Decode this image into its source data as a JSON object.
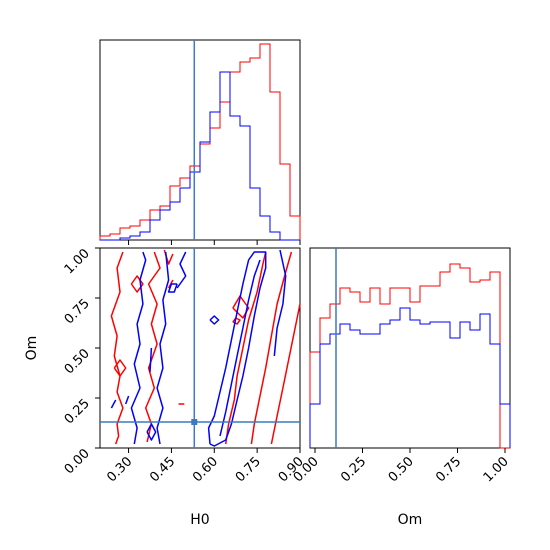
{
  "chart_data": {
    "type": "corner",
    "colors": {
      "series_a": "#ff0000",
      "series_b": "#0000ff",
      "truth": "#3b7bbf"
    },
    "parameters": [
      "H0",
      "Om"
    ],
    "truth": {
      "H0": 0.53,
      "Om": 0.13
    },
    "axes": {
      "H0": {
        "label": "H0",
        "range": [
          0.2,
          0.9
        ],
        "ticks": [
          0.3,
          0.45,
          0.6,
          0.75,
          0.9
        ],
        "tick_labels": [
          "0.30",
          "0.45",
          "0.60",
          "0.75",
          "0.90"
        ]
      },
      "Om": {
        "label": "Om",
        "range": [
          0.0,
          1.0
        ],
        "ticks": [
          0.0,
          0.25,
          0.5,
          0.75,
          1.0
        ],
        "tick_labels": [
          "0.00",
          "0.25",
          "0.50",
          "0.75",
          "1.00"
        ]
      }
    },
    "hist_H0": {
      "bins": 20,
      "series": [
        {
          "values": [
            0.02,
            0.03,
            0.06,
            0.07,
            0.1,
            0.15,
            0.17,
            0.27,
            0.31,
            0.37,
            0.48,
            0.56,
            0.69,
            0.84,
            0.89,
            0.91,
            0.98,
            0.74,
            0.38,
            0.12
          ]
        },
        {
          "values": [
            0.0,
            0.0,
            0.01,
            0.02,
            0.04,
            0.1,
            0.15,
            0.19,
            0.26,
            0.34,
            0.49,
            0.64,
            0.84,
            0.62,
            0.57,
            0.26,
            0.12,
            0.04,
            0.0,
            0.0
          ]
        }
      ]
    },
    "hist_Om": {
      "bins": 20,
      "series": [
        {
          "values": [
            0.48,
            0.65,
            0.72,
            0.8,
            0.78,
            0.73,
            0.8,
            0.72,
            0.8,
            0.8,
            0.73,
            0.81,
            0.81,
            0.88,
            0.92,
            0.9,
            0.83,
            0.84,
            0.88,
            0.0
          ]
        },
        {
          "values": [
            0.22,
            0.52,
            0.57,
            0.62,
            0.59,
            0.57,
            0.57,
            0.62,
            0.64,
            0.7,
            0.64,
            0.62,
            0.63,
            0.63,
            0.55,
            0.63,
            0.59,
            0.67,
            0.52,
            0.22
          ]
        }
      ]
    },
    "contours_red": [
      [
        [
          0.255,
          0.02
        ],
        [
          0.265,
          0.06
        ],
        [
          0.26,
          0.12
        ],
        [
          0.28,
          0.2
        ],
        [
          0.26,
          0.28
        ],
        [
          0.27,
          0.36
        ],
        [
          0.25,
          0.46
        ],
        [
          0.26,
          0.56
        ],
        [
          0.24,
          0.66
        ],
        [
          0.27,
          0.78
        ],
        [
          0.26,
          0.9
        ],
        [
          0.28,
          0.98
        ]
      ],
      [
        [
          0.365,
          0.03
        ],
        [
          0.38,
          0.12
        ],
        [
          0.36,
          0.2
        ],
        [
          0.39,
          0.3
        ],
        [
          0.37,
          0.4
        ],
        [
          0.4,
          0.52
        ],
        [
          0.38,
          0.62
        ],
        [
          0.4,
          0.72
        ],
        [
          0.37,
          0.82
        ],
        [
          0.41,
          0.9
        ],
        [
          0.39,
          0.98
        ]
      ],
      [
        [
          0.25,
          0.4
        ],
        [
          0.27,
          0.36
        ],
        [
          0.29,
          0.4
        ],
        [
          0.27,
          0.44
        ],
        [
          0.25,
          0.4
        ]
      ],
      [
        [
          0.31,
          0.82
        ],
        [
          0.33,
          0.78
        ],
        [
          0.35,
          0.82
        ],
        [
          0.33,
          0.86
        ],
        [
          0.31,
          0.82
        ]
      ],
      [
        [
          0.64,
          0.02
        ],
        [
          0.65,
          0.12
        ],
        [
          0.67,
          0.24
        ],
        [
          0.68,
          0.36
        ],
        [
          0.7,
          0.5
        ],
        [
          0.72,
          0.64
        ],
        [
          0.75,
          0.78
        ],
        [
          0.77,
          0.92
        ],
        [
          0.78,
          0.98
        ]
      ],
      [
        [
          0.73,
          0.02
        ],
        [
          0.74,
          0.12
        ],
        [
          0.76,
          0.26
        ],
        [
          0.78,
          0.4
        ],
        [
          0.8,
          0.56
        ],
        [
          0.82,
          0.72
        ],
        [
          0.85,
          0.88
        ],
        [
          0.87,
          0.98
        ]
      ],
      [
        [
          0.8,
          0.02
        ],
        [
          0.82,
          0.16
        ],
        [
          0.84,
          0.3
        ],
        [
          0.86,
          0.44
        ],
        [
          0.88,
          0.58
        ],
        [
          0.9,
          0.72
        ]
      ],
      [
        [
          0.665,
          0.7
        ],
        [
          0.7,
          0.65
        ],
        [
          0.72,
          0.7
        ],
        [
          0.69,
          0.76
        ],
        [
          0.665,
          0.7
        ]
      ],
      [
        [
          0.665,
          0.63
        ],
        [
          0.68,
          0.62
        ],
        [
          0.69,
          0.64
        ],
        [
          0.675,
          0.65
        ],
        [
          0.665,
          0.63
        ]
      ],
      [
        [
          0.475,
          0.22
        ],
        [
          0.495,
          0.22
        ]
      ],
      [
        [
          0.44,
          0.8
        ],
        [
          0.455,
          0.84
        ]
      ],
      [
        [
          0.425,
          0.99
        ],
        [
          0.44,
          0.92
        ],
        [
          0.455,
          0.97
        ]
      ]
    ],
    "contours_blue": [
      [
        [
          0.32,
          0.02
        ],
        [
          0.33,
          0.1
        ],
        [
          0.31,
          0.2
        ],
        [
          0.34,
          0.3
        ],
        [
          0.32,
          0.42
        ],
        [
          0.34,
          0.52
        ],
        [
          0.33,
          0.62
        ],
        [
          0.35,
          0.72
        ],
        [
          0.34,
          0.84
        ],
        [
          0.36,
          0.94
        ],
        [
          0.35,
          0.98
        ]
      ],
      [
        [
          0.41,
          0.02
        ],
        [
          0.4,
          0.1
        ],
        [
          0.42,
          0.2
        ],
        [
          0.4,
          0.3
        ],
        [
          0.42,
          0.4
        ],
        [
          0.41,
          0.52
        ],
        [
          0.43,
          0.62
        ],
        [
          0.42,
          0.74
        ],
        [
          0.44,
          0.84
        ],
        [
          0.43,
          0.98
        ]
      ],
      [
        [
          0.375,
          0.38
        ],
        [
          0.38,
          0.5
        ]
      ],
      [
        [
          0.5,
          0.98
        ],
        [
          0.48,
          0.92
        ],
        [
          0.5,
          0.86
        ],
        [
          0.47,
          0.8
        ]
      ],
      [
        [
          0.47,
          0.82
        ],
        [
          0.46,
          0.78
        ],
        [
          0.44,
          0.78
        ],
        [
          0.45,
          0.82
        ],
        [
          0.47,
          0.82
        ]
      ],
      [
        [
          0.365,
          0.08
        ],
        [
          0.38,
          0.12
        ],
        [
          0.395,
          0.08
        ],
        [
          0.38,
          0.04
        ],
        [
          0.365,
          0.08
        ]
      ],
      [
        [
          0.24,
          0.2
        ],
        [
          0.255,
          0.24
        ]
      ],
      [
        [
          0.29,
          0.22
        ],
        [
          0.3,
          0.26
        ]
      ],
      [
        [
          0.585,
          0.02
        ],
        [
          0.58,
          0.1
        ],
        [
          0.6,
          0.16
        ],
        [
          0.62,
          0.28
        ],
        [
          0.64,
          0.4
        ],
        [
          0.66,
          0.54
        ],
        [
          0.68,
          0.68
        ],
        [
          0.7,
          0.82
        ],
        [
          0.72,
          0.94
        ],
        [
          0.74,
          0.98
        ],
        [
          0.78,
          0.98
        ],
        [
          0.78,
          0.9
        ],
        [
          0.76,
          0.8
        ],
        [
          0.74,
          0.66
        ],
        [
          0.72,
          0.5
        ],
        [
          0.7,
          0.36
        ],
        [
          0.68,
          0.24
        ],
        [
          0.66,
          0.12
        ],
        [
          0.64,
          0.04
        ],
        [
          0.6,
          0.01
        ],
        [
          0.585,
          0.02
        ]
      ],
      [
        [
          0.62,
          0.06
        ],
        [
          0.64,
          0.18
        ],
        [
          0.66,
          0.32
        ],
        [
          0.68,
          0.46
        ],
        [
          0.7,
          0.6
        ],
        [
          0.72,
          0.74
        ],
        [
          0.74,
          0.86
        ],
        [
          0.76,
          0.94
        ]
      ],
      [
        [
          0.83,
          0.99
        ],
        [
          0.85,
          0.86
        ],
        [
          0.84,
          0.72
        ],
        [
          0.82,
          0.6
        ],
        [
          0.81,
          0.46
        ]
      ],
      [
        [
          0.585,
          0.64
        ],
        [
          0.6,
          0.62
        ],
        [
          0.615,
          0.64
        ],
        [
          0.6,
          0.66
        ],
        [
          0.585,
          0.64
        ]
      ]
    ]
  }
}
